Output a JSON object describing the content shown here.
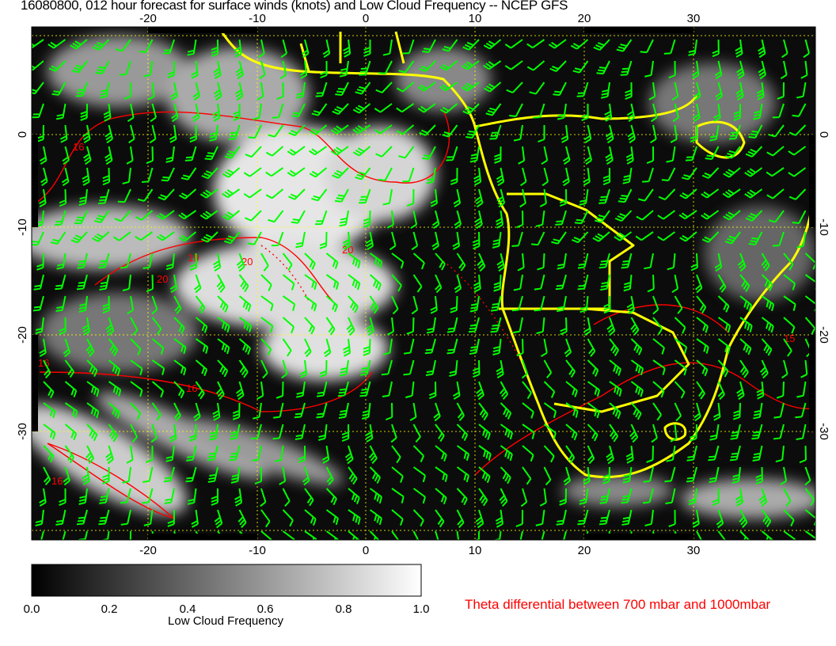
{
  "title": "16080800, 012 hour forecast for surface winds (knots) and Low Cloud Frequency -- NCEP GFS",
  "map": {
    "region": "South Atlantic / Southern Africa",
    "lon_ticks": [
      "-20",
      "-10",
      "0",
      "10",
      "20",
      "30"
    ],
    "lat_ticks": [
      "0",
      "-10",
      "-20",
      "-30"
    ],
    "contour_labels": [
      "16",
      "19",
      "20",
      "20",
      "20",
      "16",
      "16",
      "16",
      "15"
    ],
    "colors": {
      "wind_barbs": "#00ff00",
      "coastlines": "#ffff00",
      "theta_contours": "#ff0000",
      "grid": "#ffff00"
    }
  },
  "colorbar": {
    "title": "Low Cloud Frequency",
    "ticks": [
      "0.0",
      "0.2",
      "0.4",
      "0.6",
      "0.8",
      "1.0"
    ],
    "range": [
      0.0,
      1.0
    ],
    "colors": [
      "#000000",
      "#ffffff"
    ]
  },
  "legend": {
    "theta_label": "Theta differential between 700 mbar and 1000mbar"
  }
}
